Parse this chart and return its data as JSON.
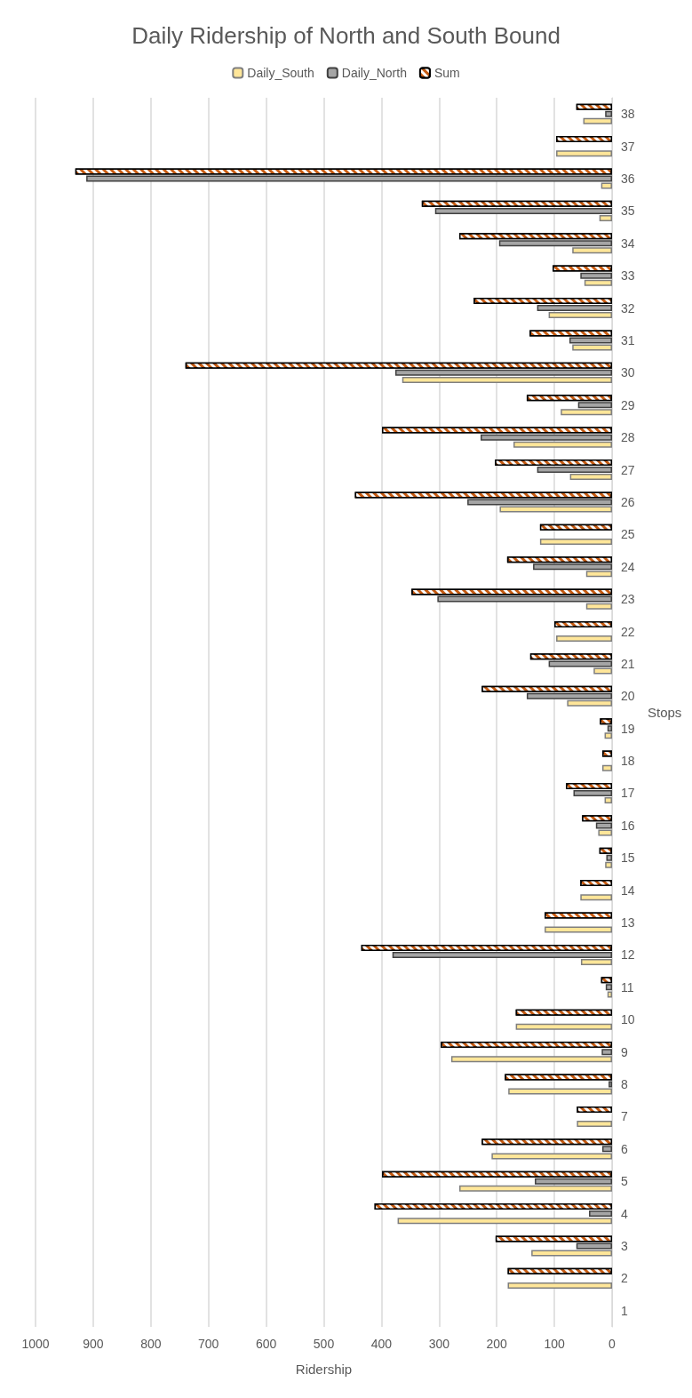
{
  "chart_data": {
    "type": "bar",
    "orientation": "horizontal",
    "title": "Daily Ridership of North and South Bound",
    "xlabel": "Ridership",
    "ylabel": "Stops",
    "categories": [
      "38",
      "37",
      "36",
      "35",
      "34",
      "33",
      "32",
      "31",
      "30",
      "29",
      "28",
      "27",
      "26",
      "25",
      "24",
      "23",
      "22",
      "21",
      "20",
      "19",
      "18",
      "17",
      "16",
      "15",
      "14",
      "13",
      "12",
      "11",
      "10",
      "9",
      "8",
      "7",
      "6",
      "5",
      "4",
      "3",
      "2",
      "1"
    ],
    "series": [
      {
        "name": "Daily_South",
        "color": "#ffe699",
        "values": [
          50,
          97,
          19,
          22,
          69,
          48,
          110,
          69,
          364,
          89,
          171,
          73,
          195,
          125,
          45,
          45,
          97,
          32,
          78,
          13,
          17,
          13,
          24,
          12,
          55,
          117,
          54,
          8,
          167,
          279,
          180,
          61,
          209,
          265,
          372,
          140,
          181,
          0
        ]
      },
      {
        "name": "Daily_North",
        "color": "#a5a5a5",
        "values": [
          12,
          0,
          912,
          307,
          196,
          55,
          130,
          74,
          376,
          59,
          228,
          130,
          251,
          0,
          137,
          303,
          null,
          110,
          148,
          8,
          0,
          67,
          28,
          10,
          0,
          0,
          381,
          11,
          0,
          18,
          6,
          0,
          17,
          134,
          40,
          62,
          0,
          0
        ]
      },
      {
        "name": "Sum",
        "color": "#c55a11",
        "values": [
          62,
          97,
          931,
          330,
          265,
          103,
          240,
          143,
          740,
          148,
          399,
          203,
          446,
          125,
          182,
          348,
          100,
          142,
          226,
          21,
          17,
          80,
          52,
          22,
          55,
          117,
          435,
          19,
          167,
          297,
          186,
          61,
          226,
          399,
          412,
          202,
          181,
          0
        ]
      }
    ],
    "xlim": [
      1000,
      0
    ],
    "xticks": [
      1000,
      900,
      800,
      700,
      600,
      500,
      400,
      300,
      200,
      100,
      0
    ],
    "grid": "x",
    "legend": "top"
  }
}
